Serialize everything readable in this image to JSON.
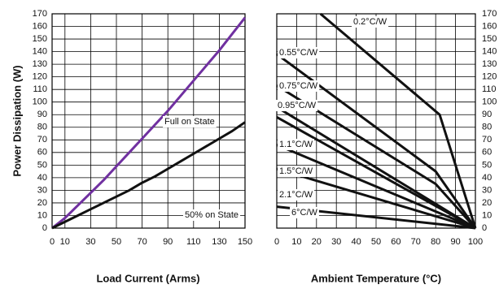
{
  "chart_data": [
    {
      "type": "line",
      "xlabel": "Load Current (Arms)",
      "ylabel": "Power Dissipation (W)",
      "xlim": [
        0,
        150
      ],
      "xticks": [
        0,
        10,
        30,
        50,
        70,
        90,
        110,
        130,
        150
      ],
      "ylim": [
        0,
        170
      ],
      "yticks": [
        0,
        10,
        20,
        30,
        40,
        50,
        60,
        70,
        80,
        90,
        100,
        110,
        120,
        130,
        140,
        150,
        160,
        170
      ],
      "grid": true,
      "series": [
        {
          "name": "Full on State",
          "color": "#7030a0",
          "x": [
            0,
            10,
            20,
            30,
            40,
            50,
            60,
            70,
            80,
            90,
            100,
            110,
            120,
            130,
            140,
            150
          ],
          "values": [
            0,
            8,
            18,
            28,
            38,
            49,
            60,
            71,
            82,
            93,
            105,
            117,
            129,
            141,
            154,
            167
          ]
        },
        {
          "name": "50% on State",
          "color": "#111111",
          "x": [
            0,
            10,
            20,
            30,
            40,
            50,
            60,
            70,
            80,
            90,
            100,
            110,
            120,
            130,
            140,
            150
          ],
          "values": [
            0,
            5,
            10,
            15,
            20,
            25,
            30,
            36,
            41,
            47,
            53,
            59,
            65,
            71,
            77,
            84
          ]
        }
      ]
    },
    {
      "type": "line",
      "xlabel": "Ambient Temperature (°C)",
      "xlim": [
        0,
        100
      ],
      "xticks": [
        0,
        10,
        20,
        30,
        40,
        50,
        60,
        70,
        80,
        90,
        100
      ],
      "ylim": [
        0,
        170
      ],
      "yticks": [
        0,
        10,
        20,
        30,
        40,
        50,
        60,
        70,
        80,
        90,
        100,
        110,
        120,
        130,
        140,
        150,
        160,
        170
      ],
      "grid": true,
      "series": [
        {
          "name": "0.2°C/W",
          "color": "#111111",
          "x": [
            22,
            82,
            100
          ],
          "values": [
            170,
            90,
            0
          ]
        },
        {
          "name": "0.55°C/W",
          "color": "#111111",
          "x": [
            0,
            80,
            100
          ],
          "values": [
            138,
            45,
            0
          ]
        },
        {
          "name": "0.75°C/W",
          "color": "#111111",
          "x": [
            0,
            80,
            100
          ],
          "values": [
            113,
            35,
            0
          ]
        },
        {
          "name": "0.95°C/W",
          "color": "#111111",
          "x": [
            0,
            100
          ],
          "values": [
            96,
            0
          ]
        },
        {
          "name": "1.1°C/W",
          "color": "#111111",
          "x": [
            0,
            100
          ],
          "values": [
            88,
            0
          ]
        },
        {
          "name": "1.5°C/W",
          "color": "#111111",
          "x": [
            0,
            100
          ],
          "values": [
            66,
            0
          ]
        },
        {
          "name": "2.1°C/W",
          "color": "#111111",
          "x": [
            0,
            100
          ],
          "values": [
            47,
            0
          ]
        },
        {
          "name": "6°C/W",
          "color": "#111111",
          "x": [
            0,
            100
          ],
          "values": [
            17,
            0
          ]
        }
      ]
    }
  ]
}
